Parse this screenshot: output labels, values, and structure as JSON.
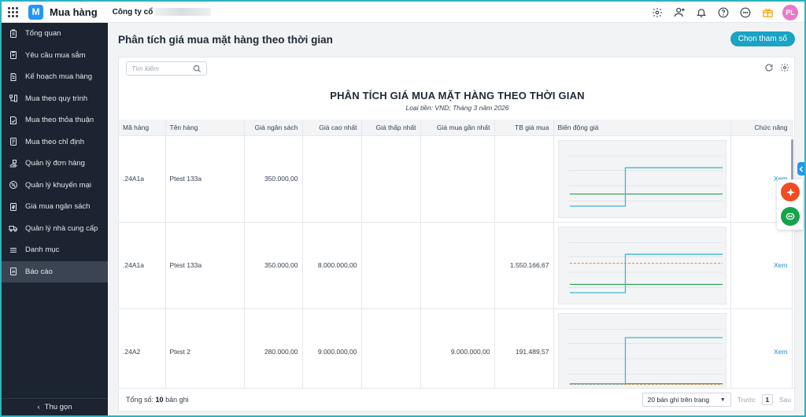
{
  "app": {
    "name": "Mua hàng",
    "logo_letter": "M",
    "company_label": "Công ty cổ",
    "user_initials": "PL"
  },
  "top_icons": [
    "settings-icon",
    "add-user-icon",
    "bell-icon",
    "help-icon",
    "more-icon",
    "gift-icon"
  ],
  "sidebar": {
    "items": [
      {
        "label": "Tổng quan",
        "icon": "dashboard-icon"
      },
      {
        "label": "Yêu cầu mua sắm",
        "icon": "request-icon"
      },
      {
        "label": "Kế hoạch mua hàng",
        "icon": "plan-icon"
      },
      {
        "label": "Mua theo quy trình",
        "icon": "process-icon"
      },
      {
        "label": "Mua theo thỏa thuận",
        "icon": "agreement-icon"
      },
      {
        "label": "Mua theo chỉ định",
        "icon": "designated-icon"
      },
      {
        "label": "Quản lý đơn hàng",
        "icon": "order-icon"
      },
      {
        "label": "Quản lý khuyến mại",
        "icon": "promotion-icon"
      },
      {
        "label": "Giá mua ngân sách",
        "icon": "budget-icon"
      },
      {
        "label": "Quản lý nhà cung cấp",
        "icon": "supplier-icon"
      },
      {
        "label": "Danh mục",
        "icon": "catalog-icon"
      },
      {
        "label": "Báo cáo",
        "icon": "report-icon"
      }
    ],
    "active_index": 11,
    "collapse_label": "Thu gọn"
  },
  "page": {
    "title": "Phân tích giá mua mặt hàng theo thời gian",
    "param_button": "Chọn tham số"
  },
  "search": {
    "placeholder": "Tìm kiếm"
  },
  "report": {
    "title": "PHÂN TÍCH GIÁ MUA MẶT HÀNG THEO THỜI GIAN",
    "subtitle": "Loại tiền: VND; Tháng 3 năm 2026"
  },
  "table": {
    "headers": [
      "Mã hàng",
      "Tên hàng",
      "Giá ngân sách",
      "Giá cao nhất",
      "Giá thấp nhất",
      "Giá mua gần nhất",
      "TB giá mua",
      "Biến động giá",
      "Chức năng"
    ],
    "rows": [
      {
        "code": ".24A1a",
        "name": "Ptest 133a",
        "budget": "350.000,00",
        "max": "",
        "min": "",
        "latest": "",
        "avg": "",
        "action": "Xem",
        "trend": {
          "actual": [
            0.1,
            0.1,
            0.1,
            0.1,
            0.7,
            0.7,
            0.7,
            0.7,
            0.7,
            0.7,
            0.7,
            0.7
          ],
          "budget": 0.29,
          "average": null
        }
      },
      {
        "code": ".24A1a",
        "name": "Ptest 133a",
        "budget": "350.000,00",
        "max": "8.000.000,00",
        "min": "",
        "latest": "",
        "avg": "1.550.166,67",
        "action": "Xem",
        "trend": {
          "actual": [
            0.1,
            0.1,
            0.1,
            0.1,
            0.7,
            0.7,
            0.7,
            0.7,
            0.7,
            0.7,
            0.7,
            0.7
          ],
          "budget": 0.23,
          "average": 0.56
        }
      },
      {
        "code": ".24A2",
        "name": "Ptest 2",
        "budget": "280.000,00",
        "max": "9.000.000,00",
        "min": "",
        "latest": "9.000.000,00",
        "avg": "191.489,57",
        "action": "Xem",
        "trend": {
          "actual": [
            0.03,
            0.03,
            0.03,
            0.03,
            0.75,
            0.75,
            0.75,
            0.75,
            0.75,
            0.75,
            0.75,
            0.75
          ],
          "budget": 0.03,
          "average": 0.02
        }
      }
    ]
  },
  "footer": {
    "total_label": "Tổng số:",
    "total_value": "10",
    "total_unit": "bản ghi",
    "page_size": "20 bản ghi trên trang",
    "prev": "Trước",
    "page": "1",
    "next": "Sau"
  }
}
